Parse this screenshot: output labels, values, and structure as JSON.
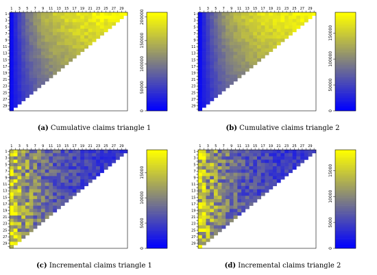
{
  "colors": {
    "low": "#0000ff",
    "mid": "#808080",
    "high": "#ffff00"
  },
  "chart_data": [
    {
      "type": "heatmap",
      "id": "a",
      "panel_letter": "(a)",
      "caption": "Cumulative claims triangle 1",
      "n": 30,
      "x_tick_labels": [
        "1",
        "3",
        "5",
        "7",
        "9",
        "11",
        "13",
        "15",
        "17",
        "19",
        "21",
        "23",
        "25",
        "27",
        "29"
      ],
      "y_tick_labels": [
        "1",
        "3",
        "5",
        "7",
        "9",
        "11",
        "13",
        "15",
        "17",
        "19",
        "21",
        "23",
        "25",
        "27",
        "29"
      ],
      "colorbar": {
        "min": 0,
        "max": 210000,
        "ticks": [
          "0",
          "50000",
          "100000",
          "150000",
          "200000"
        ]
      }
    },
    {
      "type": "heatmap",
      "id": "b",
      "panel_letter": "(b)",
      "caption": "Cumulative claims triangle 2",
      "n": 30,
      "x_tick_labels": [
        "1",
        "3",
        "5",
        "7",
        "9",
        "11",
        "13",
        "15",
        "17",
        "19",
        "21",
        "23",
        "25",
        "27",
        "29"
      ],
      "y_tick_labels": [
        "1",
        "3",
        "5",
        "7",
        "9",
        "11",
        "13",
        "15",
        "17",
        "19",
        "21",
        "23",
        "25",
        "27",
        "29"
      ],
      "colorbar": {
        "min": 0,
        "max": 190000,
        "ticks": [
          "0",
          "50000",
          "100000",
          "150000"
        ]
      }
    },
    {
      "type": "heatmap",
      "id": "c",
      "panel_letter": "(c)",
      "caption": "Incremental claims triangle 1",
      "n": 30,
      "x_tick_labels": [
        "1",
        "3",
        "5",
        "7",
        "9",
        "11",
        "13",
        "15",
        "17",
        "19",
        "21",
        "23",
        "25",
        "27",
        "29"
      ],
      "y_tick_labels": [
        "1",
        "3",
        "5",
        "7",
        "9",
        "11",
        "13",
        "15",
        "17",
        "19",
        "21",
        "23",
        "25",
        "27",
        "29"
      ],
      "colorbar": {
        "min": 0,
        "max": 19500,
        "ticks": [
          "0",
          "5000",
          "10000",
          "15000"
        ]
      }
    },
    {
      "type": "heatmap",
      "id": "d",
      "panel_letter": "(d)",
      "caption": "Incremental claims triangle 2",
      "n": 30,
      "x_tick_labels": [
        "1",
        "3",
        "5",
        "7",
        "9",
        "11",
        "13",
        "15",
        "17",
        "19",
        "21",
        "23",
        "25",
        "27",
        "29"
      ],
      "y_tick_labels": [
        "1",
        "3",
        "5",
        "7",
        "9",
        "11",
        "13",
        "15",
        "17",
        "19",
        "21",
        "23",
        "25",
        "27",
        "29"
      ],
      "colorbar": {
        "min": 0,
        "max": 19000,
        "ticks": [
          "0",
          "5000",
          "10000",
          "15000"
        ]
      }
    }
  ]
}
